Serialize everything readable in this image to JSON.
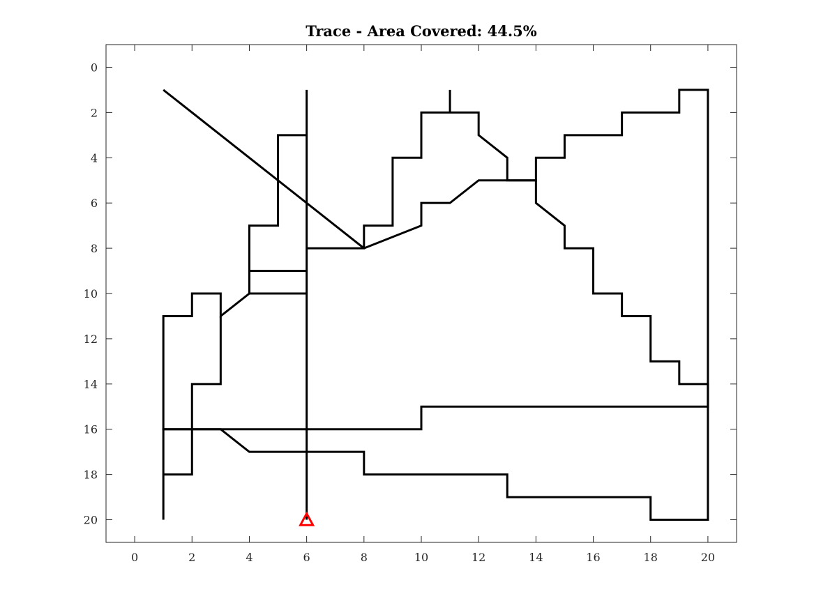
{
  "chart_data": {
    "type": "line",
    "title": "Trace - Area Covered: 44.5%",
    "xlabel": "",
    "ylabel": "",
    "xlim": [
      -1,
      21
    ],
    "ylim": [
      -1,
      21
    ],
    "y_reversed": true,
    "grid": false,
    "xticks": [
      0,
      2,
      4,
      6,
      8,
      10,
      12,
      14,
      16,
      18,
      20
    ],
    "yticks": [
      0,
      2,
      4,
      6,
      8,
      10,
      12,
      14,
      16,
      18,
      20
    ],
    "line_color": "#000000",
    "series": [
      {
        "x": [
          6,
          6,
          6,
          5,
          5,
          4,
          4,
          6,
          6,
          8,
          8,
          9,
          9,
          10,
          10,
          12,
          12,
          13,
          13,
          14,
          14,
          15,
          15,
          16,
          16,
          17,
          17,
          18,
          18,
          19,
          19,
          20,
          20,
          20,
          10,
          10,
          1,
          1
        ],
        "y": [
          20,
          1,
          3,
          3,
          7,
          7,
          10,
          10,
          8,
          8,
          7,
          7,
          4,
          4,
          2,
          2,
          3,
          4,
          5,
          5,
          6,
          7,
          8,
          8,
          10,
          10,
          11,
          11,
          13,
          13,
          14,
          14,
          15,
          15,
          15,
          16,
          16,
          20
        ]
      },
      {
        "x": [
          1,
          8
        ],
        "y": [
          1,
          8
        ]
      },
      {
        "x": [
          11,
          11
        ],
        "y": [
          1,
          2
        ]
      },
      {
        "x": [
          8,
          10,
          10,
          11,
          12,
          14,
          14,
          15,
          15,
          17,
          17,
          19,
          19,
          20,
          20,
          18,
          18,
          13,
          13,
          8,
          8,
          4,
          3,
          1,
          1,
          2,
          2,
          3,
          3,
          4,
          4,
          6
        ],
        "y": [
          8,
          7,
          6,
          6,
          5,
          5,
          4,
          4,
          3,
          3,
          2,
          2,
          1,
          1,
          20,
          20,
          19,
          19,
          18,
          18,
          17,
          17,
          16,
          16,
          11,
          11,
          10,
          10,
          11,
          10,
          9,
          9
        ]
      },
      {
        "x": [
          1,
          2,
          2,
          3,
          3
        ],
        "y": [
          18,
          18,
          14,
          14,
          11
        ]
      }
    ],
    "marker": {
      "shape": "triangle",
      "x": 6,
      "y": 20,
      "color": "#ff0000"
    }
  }
}
